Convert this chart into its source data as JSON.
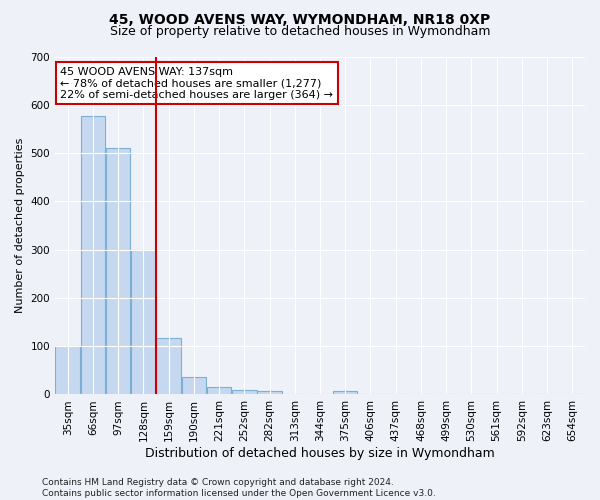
{
  "title": "45, WOOD AVENS WAY, WYMONDHAM, NR18 0XP",
  "subtitle": "Size of property relative to detached houses in Wymondham",
  "xlabel": "Distribution of detached houses by size in Wymondham",
  "ylabel": "Number of detached properties",
  "categories": [
    "35sqm",
    "66sqm",
    "97sqm",
    "128sqm",
    "159sqm",
    "190sqm",
    "221sqm",
    "252sqm",
    "282sqm",
    "313sqm",
    "344sqm",
    "375sqm",
    "406sqm",
    "437sqm",
    "468sqm",
    "499sqm",
    "530sqm",
    "561sqm",
    "592sqm",
    "623sqm",
    "654sqm"
  ],
  "values": [
    100,
    577,
    510,
    300,
    117,
    37,
    15,
    9,
    7,
    0,
    0,
    7,
    0,
    0,
    0,
    0,
    0,
    0,
    0,
    0,
    0
  ],
  "bar_color": "#c5d8f0",
  "bar_edge_color": "#7bafd4",
  "vline_color": "#cc0000",
  "vline_x": 3.5,
  "annotation_text": "45 WOOD AVENS WAY: 137sqm\n← 78% of detached houses are smaller (1,277)\n22% of semi-detached houses are larger (364) →",
  "annotation_box_color": "#ffffff",
  "annotation_box_edge_color": "#cc0000",
  "ylim": [
    0,
    700
  ],
  "yticks": [
    0,
    100,
    200,
    300,
    400,
    500,
    600,
    700
  ],
  "footer": "Contains HM Land Registry data © Crown copyright and database right 2024.\nContains public sector information licensed under the Open Government Licence v3.0.",
  "bg_color": "#eef2f8",
  "plot_bg_color": "#eef2f8",
  "grid_color": "#ffffff",
  "title_fontsize": 10,
  "subtitle_fontsize": 9,
  "xlabel_fontsize": 9,
  "ylabel_fontsize": 8,
  "tick_fontsize": 7.5,
  "annotation_fontsize": 8,
  "footer_fontsize": 6.5
}
